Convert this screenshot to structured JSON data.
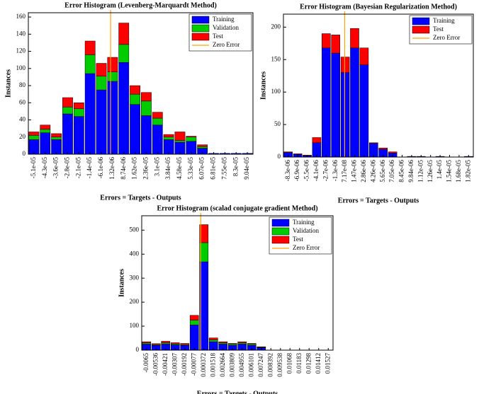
{
  "chart_data": [
    {
      "type": "bar",
      "stacked": true,
      "title": "Error Histogram (Levenberg-Marquardt Method)",
      "xlabel": "Errors = Targets - Outputs",
      "ylabel": "Instances",
      "categories": [
        "-5.1e-05",
        "-4.3e-05",
        "-3.6e-05",
        "-2.8e-05",
        "-2.1e-05",
        "-1.4e-05",
        "-6.1e-06",
        "1.32e-06",
        "8.74e-06",
        "1.62e-05",
        "2.36e-05",
        "3.1e-05",
        "3.84e-05",
        "4.58e-05",
        "5.33e-05",
        "6.07e-05",
        "6.81e-05",
        "7.55e-05",
        "8.3e-05",
        "9.04e-05"
      ],
      "series": [
        {
          "name": "Training",
          "color": "#0000ff",
          "values": [
            17,
            25,
            17,
            47,
            44,
            94,
            75,
            85,
            107,
            58,
            45,
            34,
            17,
            14,
            15,
            7,
            1,
            1,
            1,
            1
          ]
        },
        {
          "name": "Validation",
          "color": "#00cc00",
          "values": [
            5,
            4,
            3,
            8,
            9,
            22,
            16,
            11,
            21,
            12,
            17,
            8,
            3,
            2,
            5,
            2,
            0,
            0,
            0,
            0
          ]
        },
        {
          "name": "Test",
          "color": "#ff0000",
          "values": [
            4,
            5,
            4,
            11,
            7,
            16,
            15,
            17,
            25,
            10,
            10,
            7,
            3,
            10,
            1,
            2,
            0,
            0,
            0,
            0
          ]
        }
      ],
      "zero_line": {
        "name": "Zero Error",
        "color": "#ffa500"
      },
      "ylim": [
        0,
        165
      ],
      "yticks": [
        0,
        20,
        40,
        60,
        80,
        100,
        120,
        140,
        160
      ],
      "legend": "upper right"
    },
    {
      "type": "bar",
      "stacked": true,
      "title": "Error Histogram (Bayesian Regularization Method)",
      "xlabel": "Errors = Targets - Outputs",
      "ylabel": "Instances",
      "categories": [
        "-8.3e-06",
        "-6.9e-06",
        "-5.5e-06",
        "-4.1e-06",
        "-2.7e-06",
        "-1.3e-06",
        "7.17e-08",
        "1.47e-06",
        "2.86e-06",
        "4.26e-06",
        "5.65e-06",
        "7.05e-06",
        "8.45e-06",
        "9.84e-06",
        "1.12e-05",
        "1.26e-05",
        "1.4e-05",
        "1.54e-05",
        "1.68e-05",
        "1.82e-05"
      ],
      "series": [
        {
          "name": "Training",
          "color": "#0000ff",
          "values": [
            7,
            4,
            2,
            22,
            168,
            160,
            130,
            168,
            142,
            21,
            12,
            6,
            0,
            1,
            1,
            0,
            1,
            0,
            0,
            1
          ]
        },
        {
          "name": "Test",
          "color": "#ff0000",
          "values": [
            1,
            1,
            1,
            8,
            22,
            28,
            24,
            30,
            26,
            1,
            2,
            2,
            0,
            0,
            0,
            0,
            0,
            0,
            0,
            0
          ]
        }
      ],
      "zero_line": {
        "name": "Zero Error",
        "color": "#ffa500"
      },
      "ylim": [
        0,
        220
      ],
      "yticks": [
        0,
        50,
        100,
        150,
        200
      ],
      "legend": "upper right"
    },
    {
      "type": "bar",
      "stacked": true,
      "title": "Error Histogram (scalad conjugate gradient Method)",
      "xlabel": "Errors = Targets - Outputs",
      "ylabel": "Instances",
      "categories": [
        "-0.0065",
        "-0.00536",
        "-0.00421",
        "-0.00307",
        "-0.00192",
        "-0.00077",
        "0.000372",
        "0.001518",
        "0.002664",
        "0.003809",
        "0.004955",
        "0.006101",
        "0.007247",
        "0.008392",
        "0.009538",
        "0.01068",
        "0.01183",
        "0.01298",
        "0.01412",
        "0.01527"
      ],
      "series": [
        {
          "name": "Training",
          "color": "#0000ff",
          "values": [
            25,
            20,
            25,
            22,
            20,
            105,
            368,
            35,
            25,
            20,
            25,
            20,
            10,
            0,
            0,
            0,
            0,
            0,
            0,
            0
          ]
        },
        {
          "name": "Validation",
          "color": "#00cc00",
          "values": [
            5,
            3,
            5,
            4,
            3,
            20,
            80,
            8,
            5,
            5,
            5,
            5,
            2,
            0,
            0,
            0,
            0,
            0,
            0,
            0
          ]
        },
        {
          "name": "Test",
          "color": "#ff0000",
          "values": [
            5,
            4,
            7,
            5,
            5,
            20,
            75,
            8,
            5,
            3,
            5,
            3,
            2,
            0,
            0,
            0,
            0,
            0,
            0,
            0
          ]
        }
      ],
      "zero_line": {
        "name": "Zero Error",
        "color": "#ffa500"
      },
      "ylim": [
        0,
        560
      ],
      "yticks": [
        0,
        100,
        200,
        300,
        400,
        500
      ],
      "legend": "upper right"
    }
  ]
}
